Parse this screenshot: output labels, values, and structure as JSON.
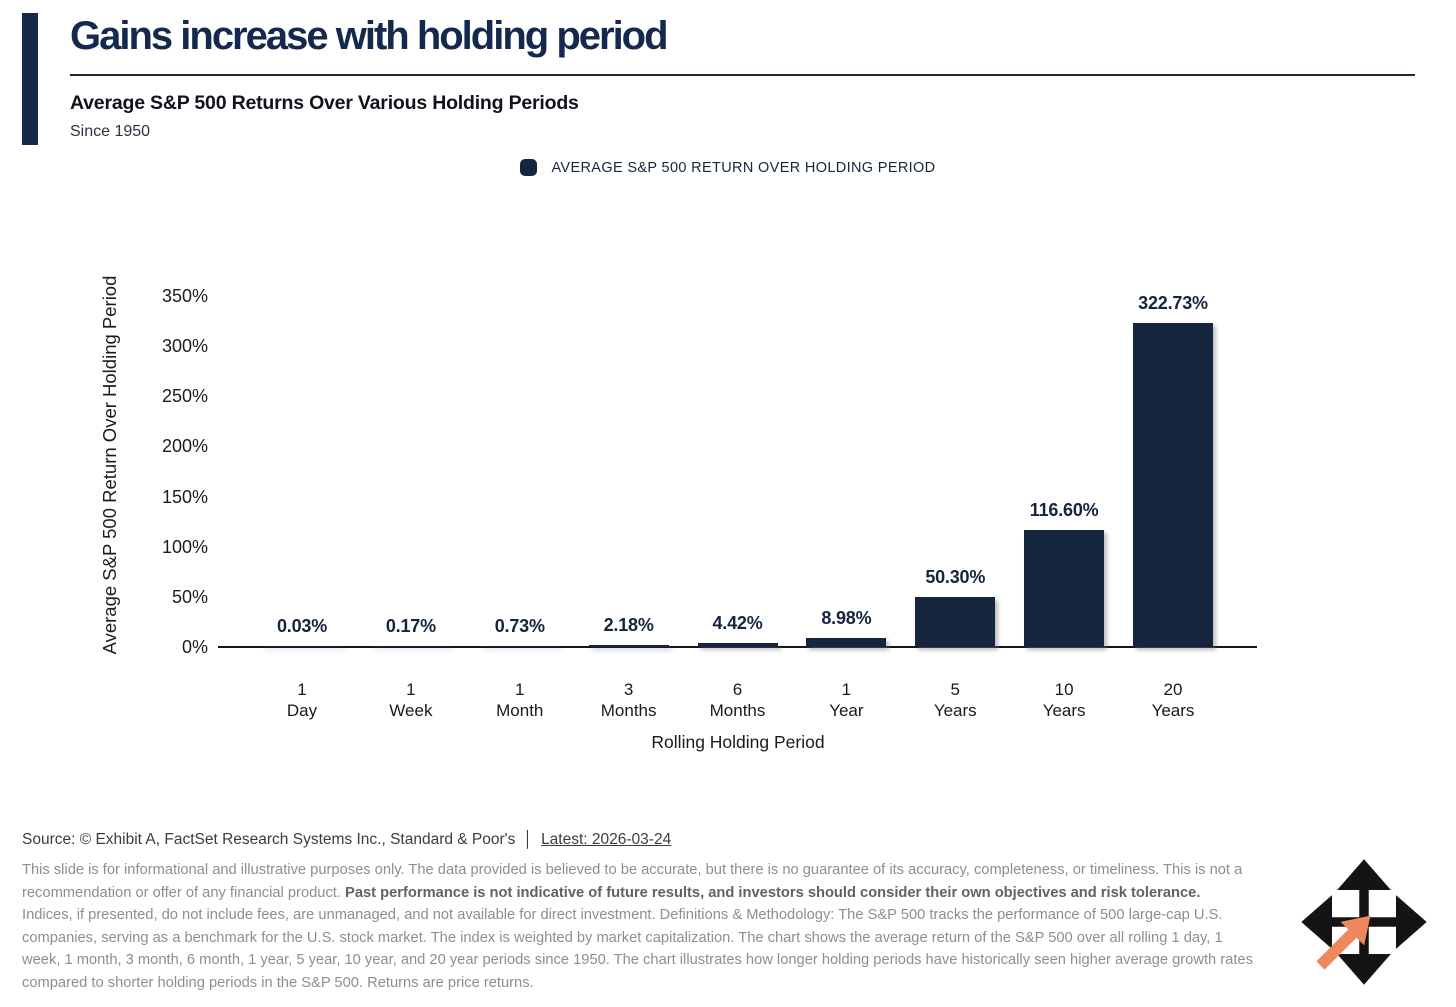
{
  "header": {
    "title": "Gains increase with holding period",
    "subtitle": "Average S&P 500 Returns Over Various Holding Periods",
    "period_note": "Since 1950"
  },
  "legend": {
    "label": "AVERAGE S&P 500 RETURN OVER HOLDING PERIOD",
    "swatch_color": "#16253e"
  },
  "chart_data": {
    "type": "bar",
    "title": "Average S&P 500 Returns Over Various Holding Periods",
    "subtitle": "Since 1950",
    "series_name": "AVERAGE S&P 500 RETURN OVER HOLDING PERIOD",
    "categories": [
      "1 Day",
      "1 Week",
      "1 Month",
      "3 Months",
      "6 Months",
      "1 Year",
      "5 Years",
      "10 Years",
      "20 Years"
    ],
    "category_lines": [
      [
        "1",
        "Day"
      ],
      [
        "1",
        "Week"
      ],
      [
        "1",
        "Month"
      ],
      [
        "3",
        "Months"
      ],
      [
        "6",
        "Months"
      ],
      [
        "1",
        "Year"
      ],
      [
        "5",
        "Years"
      ],
      [
        "10",
        "Years"
      ],
      [
        "20",
        "Years"
      ]
    ],
    "values": [
      0.03,
      0.17,
      0.73,
      2.18,
      4.42,
      8.98,
      50.3,
      116.6,
      322.73
    ],
    "value_labels": [
      "0.03%",
      "0.17%",
      "0.73%",
      "2.18%",
      "4.42%",
      "8.98%",
      "50.30%",
      "116.60%",
      "322.73%"
    ],
    "xlabel": "Rolling Holding Period",
    "ylabel": "Average S&P 500 Return Over Holding Period",
    "ylim": [
      0,
      350
    ],
    "yticks": [
      0,
      50,
      100,
      150,
      200,
      250,
      300,
      350
    ],
    "ytick_labels": [
      "0%",
      "50%",
      "100%",
      "150%",
      "200%",
      "250%",
      "300%",
      "350%"
    ],
    "grid": false,
    "legend_position": "top-center",
    "bar_color": "#16253e"
  },
  "footer": {
    "source_prefix": "Source: © Exhibit A, FactSet Research Systems Inc., Standard & Poor's",
    "separator": "│",
    "latest": "Latest: 2026-03-24",
    "disclaimer_segments": [
      {
        "text": "This slide is for informational and illustrative purposes only. The data provided is believed to be accurate, but there is no guarantee of its accuracy, completeness, or timeliness. This is not a recommendation or offer of any financial product. ",
        "bold": false
      },
      {
        "text": "Past performance is not indicative of future results, and investors should consider their own objectives and risk tolerance.",
        "bold": true
      },
      {
        "text": " Indices, if presented, do not include fees, are unmanaged, and not available for direct investment. Definitions & Methodology: The S&P 500 tracks the performance of 500 large-cap U.S. companies, serving as a benchmark for the U.S. stock market. The index is weighted by market capitalization. The chart shows the average return of the S&P 500 over all rolling 1 day, 1 week, 1 month, 3 month, 6 month, 1 year, 5 year, 10 year, and 20 year periods since 1950. The chart illustrates how longer holding periods have historically seen higher average growth rates compared to shorter holding periods in the S&P 500. Returns are price returns.",
        "bold": false
      }
    ]
  },
  "colors": {
    "accent_navy": "#152a4a",
    "bar_navy": "#16253e",
    "title_navy": "#15294e",
    "logo_black": "#141414",
    "logo_orange": "#EF875D"
  }
}
